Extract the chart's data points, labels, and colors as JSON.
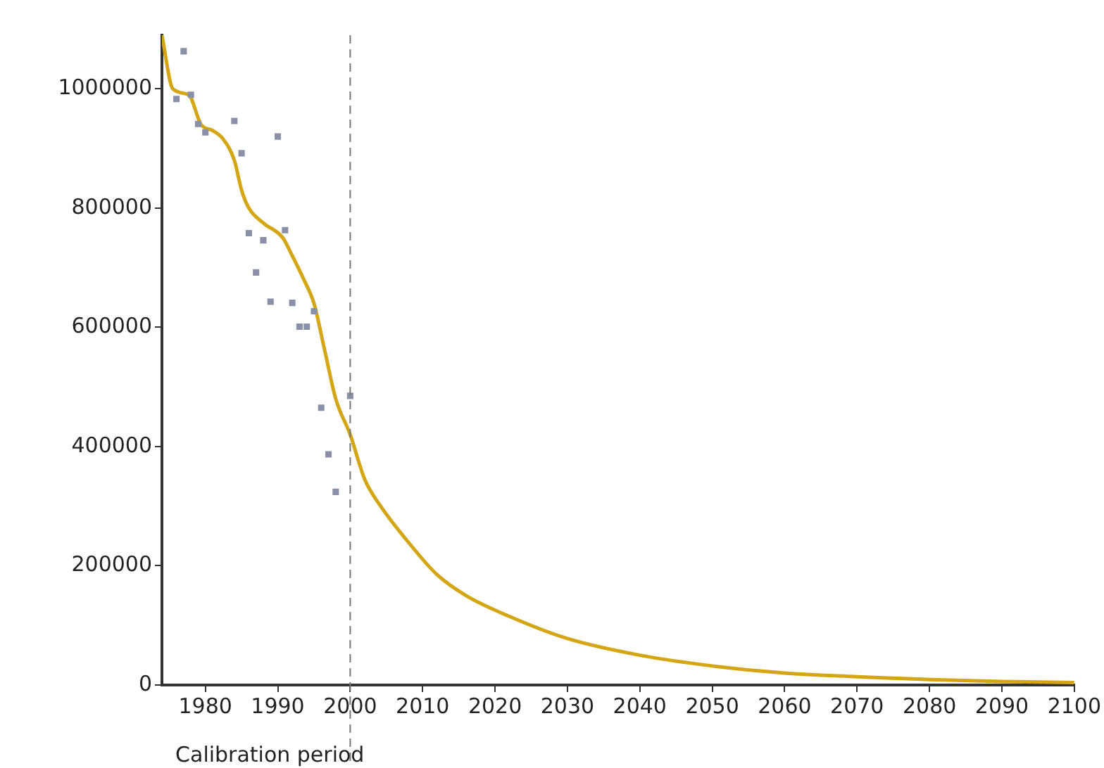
{
  "chart_data": {
    "type": "scatter",
    "xlim": [
      1974,
      2100
    ],
    "xticks": [
      1980,
      1990,
      2000,
      2010,
      2020,
      2030,
      2040,
      2050,
      2060,
      2070,
      2080,
      2090,
      2100
    ],
    "ylim": [
      0,
      1090000
    ],
    "yticks": [
      0,
      200000,
      400000,
      600000,
      800000,
      1000000
    ],
    "grid": false,
    "series": [
      {
        "marker": "square",
        "color": "#8a90a8",
        "x": [
          1976,
          1977,
          1978,
          1979,
          1980,
          1984,
          1985,
          1986,
          1987,
          1988,
          1989,
          1990,
          1991,
          1992,
          1993,
          1994,
          1995,
          1996,
          1997,
          1998,
          2000
        ],
        "values": [
          983000,
          1063000,
          990000,
          941000,
          927000,
          946000,
          892000,
          758000,
          692000,
          746000,
          643000,
          920000,
          763000,
          641000,
          601000,
          601000,
          627000,
          465000,
          387000,
          324000,
          485000
        ]
      },
      {
        "type": "line",
        "marker": "none",
        "color": "#d4a514",
        "x": [
          1974,
          1975.5,
          1977.7,
          1979.4,
          1981,
          1982.5,
          1984,
          1985,
          1986,
          1988,
          1990.7,
          1992,
          1993.6,
          1995,
          1996.5,
          1998,
          2000,
          2002,
          2004.2,
          2008,
          2012,
          2016,
          2022,
          2030,
          2040,
          2050,
          2060,
          2070,
          2080,
          2090,
          2100
        ],
        "values": [
          1090000,
          1000000,
          990000,
          940000,
          930000,
          915000,
          880000,
          830000,
          800000,
          775000,
          750000,
          720000,
          680000,
          640000,
          560000,
          480000,
          420000,
          345000,
          300000,
          240000,
          185000,
          150000,
          115000,
          78000,
          50000,
          32000,
          20000,
          14000,
          9000,
          6000,
          4000
        ]
      }
    ],
    "ref_lines": [
      {
        "axis": "x",
        "value": 2000,
        "label": "Calibration period",
        "color": "#777777",
        "line_style": "dashed"
      }
    ]
  }
}
